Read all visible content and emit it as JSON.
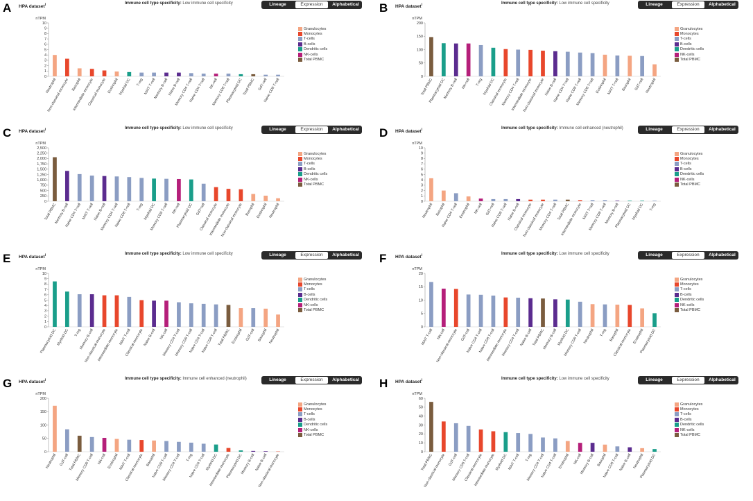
{
  "ui": {
    "dataset_label": "HPA dataset",
    "dataset_sup": "i",
    "spec_label": "Immune cell type specificity:",
    "toggle": [
      "Lineage",
      "Expression",
      "Alphabetical"
    ],
    "toggle_selected": "Expression",
    "ylabel": "nTPM"
  },
  "legend": [
    {
      "name": "Granulocytes",
      "color": "#F4A582"
    },
    {
      "name": "Monocytes",
      "color": "#E8472C"
    },
    {
      "name": "T-cells",
      "color": "#8B9DC3"
    },
    {
      "name": "B-cells",
      "color": "#5B2C8F"
    },
    {
      "name": "Dendritic cells",
      "color": "#1A9E8A"
    },
    {
      "name": "NK-cells",
      "color": "#B51F7A"
    },
    {
      "name": "Total PBMC",
      "color": "#7A5C3E"
    }
  ],
  "chart_data": [
    {
      "panel": "A",
      "type": "bar",
      "specificity": "Low immune cell specificity",
      "ylim": [
        0,
        10
      ],
      "yticks": [
        0,
        1,
        2,
        3,
        4,
        5,
        6,
        7,
        8,
        9,
        10
      ],
      "ylabel": "nTPM",
      "categories": [
        "Neutrophil",
        "Non-classical monocyte",
        "Basophil",
        "Intermediate monocyte",
        "Classical monocyte",
        "Eosinophil",
        "Myeloid DC",
        "T-reg",
        "MAIT T-cell",
        "Memory B-cell",
        "Naive B-cell",
        "Memory CD4 T-cell",
        "Naive CD4 T-cell",
        "NK-cell",
        "Memory CD8 T-cell",
        "Plasmacytoid DC",
        "Total PBMC",
        "GdT-cell",
        "Naive CD8 T-cell"
      ],
      "groups": [
        "Granulocytes",
        "Monocytes",
        "Granulocytes",
        "Monocytes",
        "Monocytes",
        "Granulocytes",
        "Dendritic cells",
        "T-cells",
        "T-cells",
        "B-cells",
        "B-cells",
        "T-cells",
        "T-cells",
        "NK-cells",
        "T-cells",
        "Dendritic cells",
        "Total PBMC",
        "T-cells",
        "T-cells"
      ],
      "values": [
        4.0,
        3.3,
        1.5,
        1.4,
        1.1,
        0.9,
        0.8,
        0.7,
        0.7,
        0.7,
        0.7,
        0.6,
        0.5,
        0.5,
        0.5,
        0.4,
        0.4,
        0.3,
        0.3
      ]
    },
    {
      "panel": "B",
      "type": "bar",
      "specificity": "Low immune cell specificity",
      "ylim": [
        0,
        200
      ],
      "yticks": [
        0,
        50,
        100,
        150,
        200
      ],
      "ylabel": "nTPM",
      "categories": [
        "Total PBMC",
        "Plasmacytoid DC",
        "Memory B-cell",
        "NK-cell",
        "T-reg",
        "Myeloid DC",
        "Classical monocyte",
        "Memory CD4 T-cell",
        "Intermediate monocyte",
        "Non-classical monocyte",
        "Naive B-cell",
        "Naive CD4 T-cell",
        "Naive CD8 T-cell",
        "Memory CD8 T-cell",
        "Eosinophil",
        "MAIT T-cell",
        "Basophil",
        "GdT-cell",
        "Neutrophil"
      ],
      "groups": [
        "Total PBMC",
        "Dendritic cells",
        "B-cells",
        "NK-cells",
        "T-cells",
        "Dendritic cells",
        "Monocytes",
        "T-cells",
        "Monocytes",
        "Monocytes",
        "B-cells",
        "T-cells",
        "T-cells",
        "T-cells",
        "Granulocytes",
        "T-cells",
        "Granulocytes",
        "T-cells",
        "Granulocytes"
      ],
      "values": [
        147,
        124,
        123,
        123,
        117,
        107,
        102,
        100,
        99,
        96,
        94,
        92,
        89,
        87,
        81,
        78,
        77,
        76,
        45
      ]
    },
    {
      "panel": "C",
      "type": "bar",
      "specificity": "Low immune cell specificity",
      "ylim": [
        0,
        2500
      ],
      "yticks": [
        0,
        250,
        500,
        750,
        1000,
        1250,
        1500,
        1750,
        2000,
        2250,
        2500
      ],
      "ytick_labels": [
        "0",
        "250",
        "500",
        "750",
        "1,000",
        "1,250",
        "1,500",
        "1,750",
        "2,000",
        "2,250",
        "2,500"
      ],
      "ylabel": "nTPM",
      "categories": [
        "Total PBMC",
        "Memory B-cell",
        "Naive CD4 T-cell",
        "MAIT T-cell",
        "Naive B-cell",
        "Memory CD4 T-cell",
        "Naive CD8 T-cell",
        "T-reg",
        "Myeloid DC",
        "Memory CD8 T-cell",
        "NK-cell",
        "Plasmacytoid DC",
        "GdT-cell",
        "Classical monocyte",
        "Intermediate monocyte",
        "Non-classical monocyte",
        "Basophil",
        "Eosinophil",
        "Neutrophil"
      ],
      "groups": [
        "Total PBMC",
        "B-cells",
        "T-cells",
        "T-cells",
        "B-cells",
        "T-cells",
        "T-cells",
        "T-cells",
        "Dendritic cells",
        "T-cells",
        "NK-cells",
        "Dendritic cells",
        "T-cells",
        "Monocytes",
        "Monocytes",
        "Monocytes",
        "Granulocytes",
        "Granulocytes",
        "Granulocytes"
      ],
      "values": [
        2060,
        1420,
        1270,
        1200,
        1180,
        1160,
        1130,
        1090,
        1060,
        1050,
        1040,
        1020,
        820,
        660,
        580,
        560,
        340,
        260,
        140
      ]
    },
    {
      "panel": "D",
      "type": "bar",
      "specificity": "Immune cell enhanced (neutrophil)",
      "ylim": [
        0,
        10
      ],
      "yticks": [
        0,
        1,
        2,
        3,
        4,
        5,
        6,
        7,
        8,
        9,
        10
      ],
      "ylabel": "nTPM",
      "categories": [
        "Neutrophil",
        "Basophil",
        "Naive CD4 T-cell",
        "Eosinophil",
        "NK-cell",
        "GdT-cell",
        "Naive CD8 T-cell",
        "Naive B-cell",
        "Classical monocyte",
        "Non-classical monocyte",
        "Memory CD4 T-cell",
        "Total PBMC",
        "Intermediate monocyte",
        "MAIT T-cell",
        "Memory CD8 T-cell",
        "Memory B-cell",
        "Plasmacytoid DC",
        "Myeloid DC",
        "T-reg"
      ],
      "groups": [
        "Granulocytes",
        "Granulocytes",
        "T-cells",
        "Granulocytes",
        "NK-cells",
        "T-cells",
        "T-cells",
        "B-cells",
        "Monocytes",
        "Monocytes",
        "T-cells",
        "Total PBMC",
        "Monocytes",
        "T-cells",
        "T-cells",
        "B-cells",
        "Dendritic cells",
        "Dendritic cells",
        "T-cells"
      ],
      "values": [
        4.3,
        2.0,
        1.5,
        0.9,
        0.5,
        0.4,
        0.4,
        0.4,
        0.3,
        0.3,
        0.3,
        0.3,
        0.2,
        0.2,
        0.2,
        0.1,
        0.1,
        0.1,
        0.1
      ]
    },
    {
      "panel": "E",
      "type": "bar",
      "specificity": "Low immune cell specificity",
      "ylim": [
        0,
        10
      ],
      "yticks": [
        0,
        1,
        2,
        3,
        4,
        5,
        6,
        7,
        8,
        9,
        10
      ],
      "ylabel": "nTPM",
      "categories": [
        "Plasmacytoid DC",
        "Myeloid DC",
        "T-reg",
        "Memory B-cell",
        "Non-classical monocyte",
        "Intermediate monocyte",
        "MAIT T-cell",
        "Classical monocyte",
        "Naive B-cell",
        "NK-cell",
        "Memory CD4 T-cell",
        "Memory CD8 T-cell",
        "Naive CD4 T-cell",
        "Naive CD8 T-cell",
        "Total PBMC",
        "Eosinophil",
        "GdT-cell",
        "Basophil",
        "Neutrophil"
      ],
      "groups": [
        "Dendritic cells",
        "Dendritic cells",
        "T-cells",
        "B-cells",
        "Monocytes",
        "Monocytes",
        "T-cells",
        "Monocytes",
        "B-cells",
        "NK-cells",
        "T-cells",
        "T-cells",
        "T-cells",
        "T-cells",
        "Total PBMC",
        "Granulocytes",
        "T-cells",
        "Granulocytes",
        "Granulocytes"
      ],
      "values": [
        8.5,
        6.6,
        6.1,
        6.1,
        5.9,
        5.9,
        5.6,
        5.0,
        4.9,
        4.9,
        4.6,
        4.4,
        4.3,
        4.2,
        4.1,
        3.5,
        3.5,
        3.4,
        2.3
      ]
    },
    {
      "panel": "F",
      "type": "bar",
      "specificity": "Low immune cell specificity",
      "ylim": [
        0,
        20
      ],
      "yticks": [
        0,
        5,
        10,
        15,
        20
      ],
      "ylabel": "nTPM",
      "categories": [
        "MAIT T-cell",
        "NK-cell",
        "Non-classical monocyte",
        "GdT-cell",
        "Naive CD4 T-cell",
        "Naive CD8 T-cell",
        "Intermediate monocyte",
        "Memory CD4 T-cell",
        "Naive B-cell",
        "Total PBMC",
        "Memory B-cell",
        "Myeloid DC",
        "Memory CD8 T-cell",
        "Neutrophil",
        "T-reg",
        "Basophil",
        "Classical monocyte",
        "Eosinophil",
        "Plasmacytoid DC"
      ],
      "groups": [
        "T-cells",
        "NK-cells",
        "Monocytes",
        "T-cells",
        "T-cells",
        "T-cells",
        "Monocytes",
        "T-cells",
        "B-cells",
        "Total PBMC",
        "B-cells",
        "Dendritic cells",
        "T-cells",
        "Granulocytes",
        "T-cells",
        "Granulocytes",
        "Monocytes",
        "Granulocytes",
        "Dendritic cells"
      ],
      "values": [
        16.8,
        14.3,
        14.2,
        12.1,
        12.0,
        11.7,
        11.0,
        10.9,
        10.7,
        10.6,
        10.3,
        10.2,
        9.4,
        8.5,
        8.4,
        8.3,
        8.2,
        6.9,
        5.1
      ]
    },
    {
      "panel": "G",
      "type": "bar",
      "specificity": "Immune cell enhanced (neutrophil)",
      "ylim": [
        0,
        200
      ],
      "yticks": [
        0,
        50,
        100,
        150,
        200
      ],
      "ylabel": "nTPM",
      "categories": [
        "Neutrophil",
        "GdT-cell",
        "Total PBMC",
        "Memory CD8 T-cell",
        "NK-cell",
        "Eosinophil",
        "MAIT T-cell",
        "Classical monocyte",
        "Basophil",
        "Naive CD8 T-cell",
        "Memory CD4 T-cell",
        "T-reg",
        "Naive CD4 T-cell",
        "Myeloid DC",
        "Intermediate monocyte",
        "Plasmacytoid DC",
        "Memory B-cell",
        "Naive B-cell",
        "Non-classical monocyte"
      ],
      "groups": [
        "Granulocytes",
        "T-cells",
        "Total PBMC",
        "T-cells",
        "NK-cells",
        "Granulocytes",
        "T-cells",
        "Monocytes",
        "Granulocytes",
        "T-cells",
        "T-cells",
        "T-cells",
        "T-cells",
        "Dendritic cells",
        "Monocytes",
        "Dendritic cells",
        "B-cells",
        "B-cells",
        "Monocytes"
      ],
      "values": [
        172,
        84,
        60,
        55,
        52,
        48,
        45,
        44,
        42,
        40,
        37,
        34,
        30,
        27,
        14,
        5,
        3,
        2,
        1
      ]
    },
    {
      "panel": "H",
      "type": "bar",
      "specificity": "Low immune cell specificity",
      "ylim": [
        0,
        60
      ],
      "yticks": [
        0,
        10,
        20,
        30,
        40,
        50,
        60
      ],
      "ylabel": "nTPM",
      "categories": [
        "Total PBMC",
        "Non-classical monocyte",
        "GdT-cell",
        "Memory CD8 T-cell",
        "Classical monocyte",
        "Intermediate monocyte",
        "Myeloid DC",
        "MAIT T-cell",
        "T-reg",
        "Memory CD4 T-cell",
        "Naive CD4 T-cell",
        "Eosinophil",
        "NK-cell",
        "Memory B-cell",
        "Basophil",
        "Naive CD8 T-cell",
        "Naive B-cell",
        "Neutrophil",
        "Plasmacytoid DC"
      ],
      "groups": [
        "Total PBMC",
        "Monocytes",
        "T-cells",
        "T-cells",
        "Monocytes",
        "Monocytes",
        "Dendritic cells",
        "T-cells",
        "T-cells",
        "T-cells",
        "T-cells",
        "Granulocytes",
        "NK-cells",
        "B-cells",
        "Granulocytes",
        "T-cells",
        "B-cells",
        "Granulocytes",
        "Dendritic cells"
      ],
      "values": [
        56,
        34,
        32,
        29,
        25,
        23,
        22,
        21,
        20,
        16,
        15,
        12,
        10,
        10,
        8,
        6,
        5,
        4,
        3
      ]
    }
  ]
}
